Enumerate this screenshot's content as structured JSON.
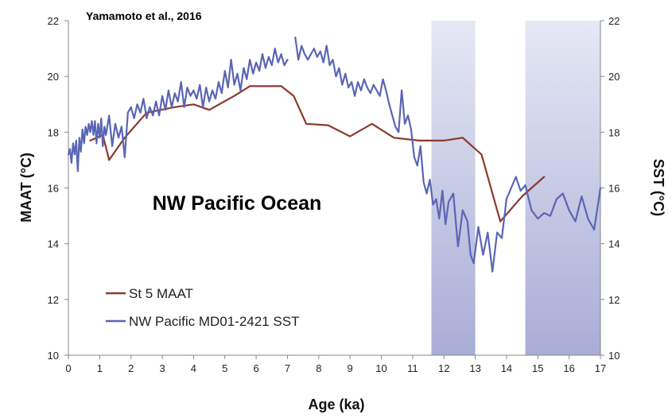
{
  "chart_data": {
    "type": "line",
    "credit": "Yamamoto et al., 2016",
    "annotation": "NW Pacific Ocean",
    "xlabel": "Age (ka)",
    "ylabel_left": "MAAT (°C)",
    "ylabel_right": "SST (°C)",
    "xlim": [
      0,
      17
    ],
    "ylim_left": [
      10,
      22
    ],
    "ylim_right": [
      10,
      22
    ],
    "xticks": [
      "0",
      "1",
      "2",
      "3",
      "4",
      "5",
      "6",
      "7",
      "8",
      "9",
      "10",
      "11",
      "12",
      "13",
      "14",
      "15",
      "16",
      "17"
    ],
    "yticks_left": [
      "10",
      "12",
      "14",
      "16",
      "18",
      "20",
      "22"
    ],
    "yticks_right": [
      "10",
      "12",
      "14",
      "16",
      "18",
      "20",
      "22"
    ],
    "grid": false,
    "legend_position": "bottom-left",
    "shaded_intervals": [
      [
        11.6,
        13.0
      ],
      [
        14.6,
        17.0
      ]
    ],
    "colors": {
      "maat": "#8b3a2e",
      "sst": "#5a66b4",
      "shade_top": "#e6e8f4",
      "shade_bottom": "#a9add6",
      "axis": "#888888"
    },
    "series": [
      {
        "name": "St 5 MAAT",
        "axis": "left",
        "x": [
          0.7,
          1.1,
          1.3,
          1.8,
          2.5,
          3.4,
          4.0,
          4.5,
          5.3,
          5.8,
          6.3,
          6.8,
          7.2,
          7.6,
          8.3,
          9.0,
          9.7,
          10.4,
          11.2,
          12.0,
          12.6,
          13.2,
          13.8,
          14.5,
          15.2
        ],
        "y": [
          17.7,
          17.9,
          17.0,
          17.8,
          18.7,
          18.9,
          19.0,
          18.8,
          19.3,
          19.65,
          19.65,
          19.65,
          19.3,
          18.3,
          18.25,
          17.85,
          18.3,
          17.8,
          17.7,
          17.7,
          17.8,
          17.2,
          14.8,
          15.7,
          16.4
        ]
      },
      {
        "name": "NW Pacific MD01-2421 SST",
        "axis": "right",
        "x": [
          0.0,
          0.05,
          0.1,
          0.15,
          0.2,
          0.25,
          0.3,
          0.35,
          0.4,
          0.45,
          0.5,
          0.55,
          0.6,
          0.65,
          0.7,
          0.75,
          0.8,
          0.85,
          0.9,
          0.95,
          1.0,
          1.05,
          1.1,
          1.15,
          1.2,
          1.3,
          1.4,
          1.5,
          1.6,
          1.7,
          1.8,
          1.9,
          2.0,
          2.1,
          2.2,
          2.3,
          2.4,
          2.5,
          2.6,
          2.7,
          2.8,
          2.9,
          3.0,
          3.1,
          3.2,
          3.3,
          3.4,
          3.5,
          3.6,
          3.7,
          3.8,
          3.9,
          4.0,
          4.1,
          4.2,
          4.3,
          4.4,
          4.5,
          4.6,
          4.7,
          4.8,
          4.9,
          5.0,
          5.1,
          5.2,
          5.3,
          5.4,
          5.5,
          5.6,
          5.7,
          5.8,
          5.9,
          6.0,
          6.1,
          6.2,
          6.3,
          6.4,
          6.5,
          6.6,
          6.7,
          6.8,
          6.9,
          7.0
        ],
        "y": [
          17.2,
          17.4,
          16.9,
          17.6,
          17.2,
          17.7,
          16.6,
          17.8,
          17.3,
          18.1,
          17.6,
          18.2,
          17.9,
          18.3,
          18.0,
          18.4,
          17.9,
          18.4,
          17.6,
          18.3,
          17.8,
          18.5,
          17.5,
          18.2,
          17.9,
          18.6,
          17.5,
          18.3,
          17.8,
          18.2,
          17.1,
          18.7,
          18.9,
          18.5,
          19.0,
          18.7,
          19.2,
          18.5,
          18.9,
          18.6,
          19.1,
          18.6,
          19.3,
          18.8,
          19.5,
          18.9,
          19.4,
          19.1,
          19.8,
          18.9,
          19.6,
          19.3,
          19.5,
          19.2,
          19.7,
          18.9,
          19.6,
          19.1,
          19.5,
          19.2,
          19.8,
          19.4,
          20.2,
          19.6,
          20.6,
          19.7,
          20.1,
          19.5,
          20.3,
          19.9,
          20.6,
          20.1,
          20.5,
          20.2,
          20.8,
          20.3,
          20.7,
          20.4,
          21.0,
          20.5,
          20.8,
          20.4,
          20.6
        ]
      },
      {
        "name": "",
        "axis": "right",
        "x": [
          7.25,
          7.35,
          7.45,
          7.55,
          7.65,
          7.75,
          7.85,
          7.95,
          8.05,
          8.15,
          8.25,
          8.35,
          8.45,
          8.55,
          8.65,
          8.75,
          8.85,
          8.95,
          9.05,
          9.15,
          9.25,
          9.35,
          9.45,
          9.55,
          9.65,
          9.75,
          9.85,
          9.95,
          10.05,
          10.15,
          10.25,
          10.35,
          10.45,
          10.55,
          10.65,
          10.75,
          10.85,
          10.95,
          11.05,
          11.15,
          11.25,
          11.35,
          11.45,
          11.55,
          11.65,
          11.75,
          11.85,
          11.95,
          12.05,
          12.15,
          12.3,
          12.45,
          12.6,
          12.75,
          12.85,
          12.95,
          13.1,
          13.25,
          13.4,
          13.55,
          13.7,
          13.85,
          14.0,
          14.15,
          14.3,
          14.45,
          14.6,
          14.8,
          15.0,
          15.2,
          15.4,
          15.6,
          15.8,
          16.0,
          16.2,
          16.4,
          16.6,
          16.8,
          17.0
        ],
        "y": [
          21.4,
          20.6,
          21.1,
          20.8,
          20.6,
          20.8,
          21.0,
          20.7,
          20.9,
          20.5,
          21.1,
          20.4,
          20.6,
          20.0,
          20.3,
          19.7,
          20.1,
          19.6,
          19.8,
          19.3,
          19.8,
          19.5,
          19.9,
          19.6,
          19.4,
          19.7,
          19.5,
          19.3,
          19.9,
          19.5,
          19.0,
          18.6,
          18.2,
          18.0,
          19.5,
          18.3,
          18.6,
          18.1,
          17.1,
          16.8,
          17.5,
          16.2,
          15.8,
          16.3,
          15.4,
          15.6,
          14.9,
          15.9,
          14.7,
          15.5,
          15.8,
          13.9,
          15.2,
          14.8,
          13.6,
          13.3,
          14.6,
          13.6,
          14.4,
          13.0,
          14.4,
          14.2,
          15.6,
          16.0,
          16.4,
          15.9,
          16.1,
          15.2,
          14.9,
          15.1,
          15.0,
          15.6,
          15.8,
          15.2,
          14.8,
          15.7,
          14.9,
          14.5,
          16.0
        ]
      }
    ]
  }
}
